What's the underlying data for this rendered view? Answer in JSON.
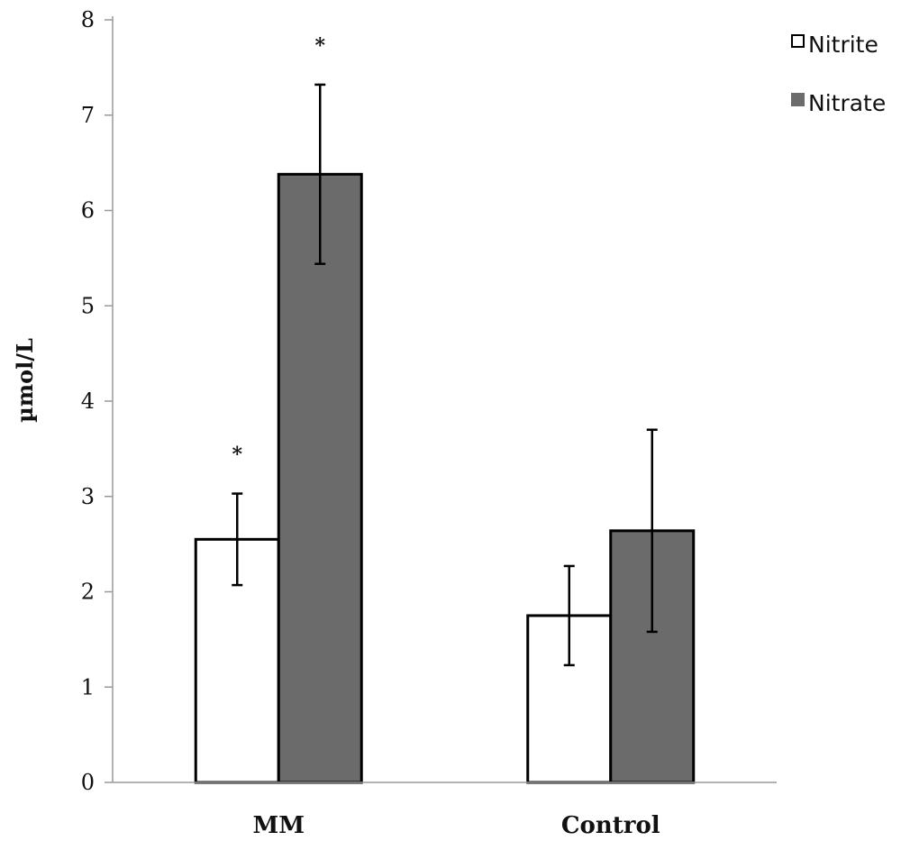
{
  "chart_data": {
    "type": "bar",
    "categories": [
      "MM",
      "Control"
    ],
    "series": [
      {
        "name": "Nitrite",
        "values": [
          2.55,
          1.75
        ],
        "errors": [
          0.48,
          0.52
        ],
        "color": "#ffffff",
        "significance": [
          "*",
          ""
        ]
      },
      {
        "name": "Nitrate",
        "values": [
          6.38,
          2.64
        ],
        "errors": [
          0.94,
          1.06
        ],
        "color": "#6b6b6b",
        "significance": [
          "*",
          ""
        ]
      }
    ],
    "ylabel": "µmol/L",
    "xlabel": "",
    "title": "",
    "ylim": [
      0,
      8
    ],
    "yticks": [
      "0",
      "1",
      "2",
      "3",
      "4",
      "5",
      "6",
      "7",
      "8"
    ],
    "grid": false,
    "legend": "top-right"
  }
}
